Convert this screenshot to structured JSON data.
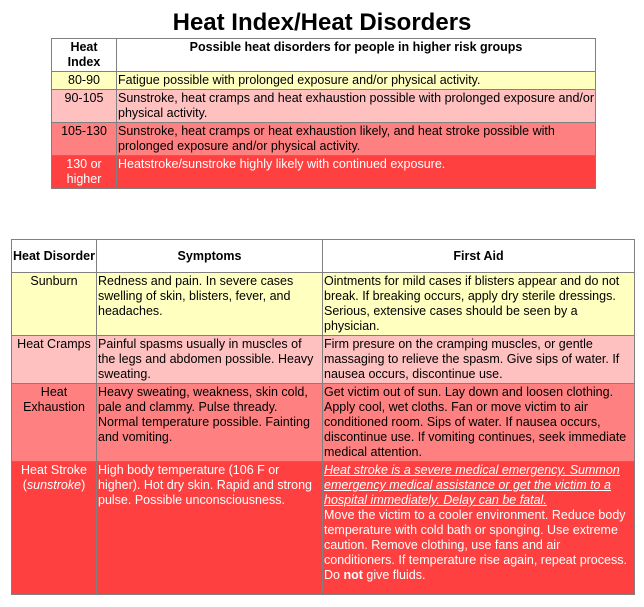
{
  "title": "Heat Index/Heat Disorders",
  "index_table": {
    "headers": [
      "Heat Index",
      "Possible heat disorders for people in higher risk groups"
    ],
    "rows": [
      {
        "range": "80-90",
        "text": "Fatigue possible with prolonged exposure and/or physical activity."
      },
      {
        "range": "90-105",
        "text": "Sunstroke, heat cramps and heat exhaustion possible with prolonged exposure and/or physical activity."
      },
      {
        "range": "105-130",
        "text": "Sunstroke, heat cramps or heat exhaustion likely, and heat stroke possible with prolonged exposure and/or physical activity."
      },
      {
        "range": "130 or higher",
        "text": "Heatstroke/sunstroke highly likely with continued exposure."
      }
    ]
  },
  "disorder_table": {
    "headers": [
      "Heat Disorder",
      "Symptoms",
      "First Aid"
    ],
    "rows": [
      {
        "name": "Sunburn",
        "symptoms": "Redness and pain. In severe cases swelling of skin, blisters, fever, and headaches.",
        "first_aid": "Ointments for mild cases if blisters appear and do not break. If breaking occurs, apply dry sterile dressings. Serious, extensive cases should be seen by a physician."
      },
      {
        "name": "Heat Cramps",
        "symptoms": "Painful spasms usually in muscles of the legs and abdomen possible. Heavy sweating.",
        "first_aid": "Firm presure on the cramping muscles, or gentle massaging to relieve the spasm. Give sips of water. If nausea occurs, discontinue use."
      },
      {
        "name": "Heat Exhaustion",
        "symptoms": "Heavy sweating, weakness, skin cold, pale and clammy. Pulse thready. Normal temperature possible. Fainting and vomiting.",
        "first_aid": "Get victim out of sun. Lay down and loosen clothing. Apply cool, wet cloths. Fan or move victim to air conditioned room. Sips of water. If nausea occurs, discontinue use. If vomiting continues, seek immediate medical attention."
      },
      {
        "name": "Heat Stroke",
        "alias": "sunstroke",
        "symptoms": "High body temperature (106 F or higher). Hot dry skin. Rapid and strong pulse. Possible unconsciousness.",
        "first_aid_warning": "Heat stroke is a severe medical emergency. Summon emergency medical assistance or get the victim to a hospital immediately. Delay can be fatal.",
        "first_aid": "Move the victim to a cooler environment. Reduce body temperature with cold bath or sponging. Use extreme caution. Remove clothing, use fans and air conditioners. If temperature rise again, repeat process. Do ",
        "first_aid_bold": "not",
        "first_aid_end": " give fluids."
      }
    ]
  },
  "colors": {
    "yellow": "#ffffc0",
    "pink": "#ffc0c0",
    "salmon": "#ff8080",
    "red": "#ff4040"
  }
}
